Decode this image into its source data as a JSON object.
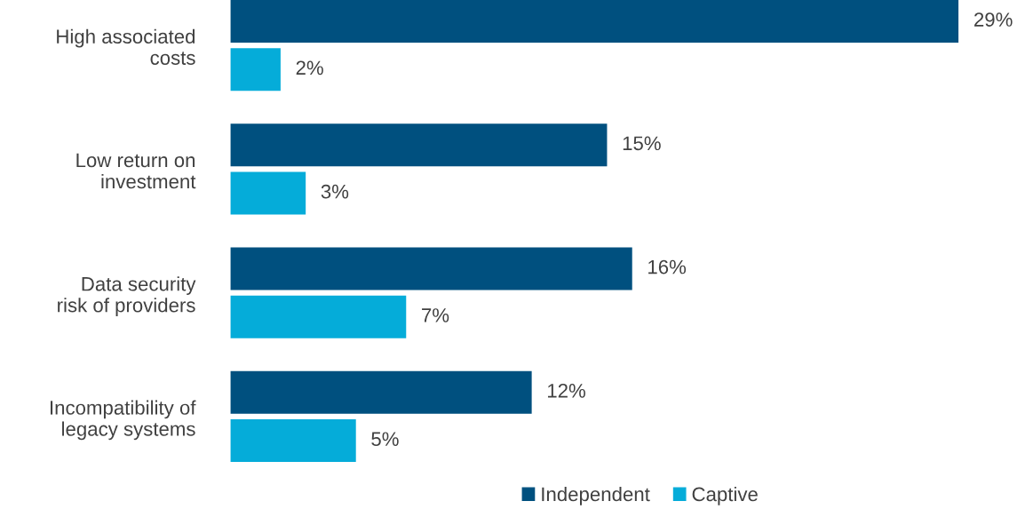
{
  "chart_data": {
    "type": "bar",
    "orientation": "horizontal",
    "categories": [
      "High associated\ncosts",
      "Low return on\ninvestment",
      "Data security\nrisk of providers",
      "Incompatibility of\nlegacy systems"
    ],
    "series": [
      {
        "name": "Independent",
        "color": "#00507f",
        "values": [
          29,
          15,
          16,
          12
        ],
        "value_labels": [
          "29%",
          "15%",
          "16%",
          "12%"
        ]
      },
      {
        "name": "Captive",
        "color": "#05acd9",
        "values": [
          2,
          3,
          7,
          5
        ],
        "value_labels": [
          "2%",
          "3%",
          "7%",
          "5%"
        ]
      }
    ],
    "legend": "bottom",
    "grid": false
  }
}
